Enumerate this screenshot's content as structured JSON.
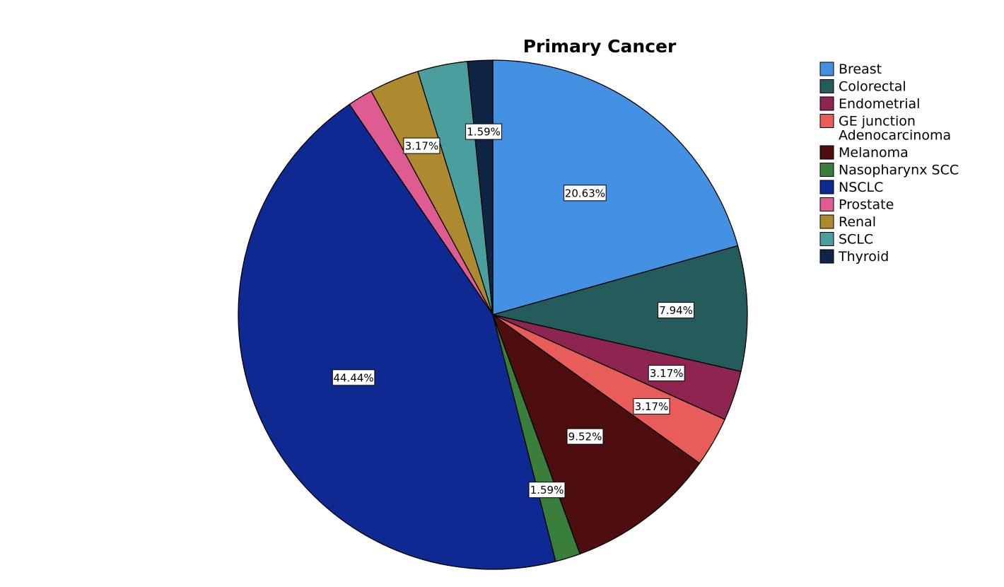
{
  "chart_data": {
    "type": "pie",
    "title": "Primary Cancer",
    "legend_position": "top-right",
    "start_angle": "12 o'clock",
    "direction": "clockwise",
    "categories": [
      "Breast",
      "Colorectal",
      "Endometrial",
      "GE junction Adenocarcinoma",
      "Melanoma",
      "Nasopharynx SCC",
      "NSCLC",
      "Prostate",
      "Renal",
      "SCLC",
      "Thyroid"
    ],
    "legend_lines": [
      [
        "Breast"
      ],
      [
        "Colorectal"
      ],
      [
        "Endometrial"
      ],
      [
        "GE junction",
        "Adenocarcinoma"
      ],
      [
        "Melanoma"
      ],
      [
        "Nasopharynx SCC"
      ],
      [
        "NSCLC"
      ],
      [
        "Prostate"
      ],
      [
        "Renal"
      ],
      [
        "SCLC"
      ],
      [
        "Thyroid"
      ]
    ],
    "values": [
      20.63,
      7.94,
      3.17,
      3.17,
      9.52,
      1.59,
      44.44,
      1.59,
      3.17,
      3.17,
      1.59
    ],
    "labels": [
      "20.63%",
      "7.94%",
      "3.17%",
      "3.17%",
      "9.52%",
      "1.59%",
      "44.44%",
      "",
      "3.17%",
      "",
      "1.59%"
    ],
    "colors": [
      "#4490e2",
      "#245c5c",
      "#8e2450",
      "#e85c5a",
      "#4e0d0e",
      "#3a7e3c",
      "#0e2991",
      "#de5c92",
      "#ad8a30",
      "#4a9e9c",
      "#0f2546"
    ]
  }
}
